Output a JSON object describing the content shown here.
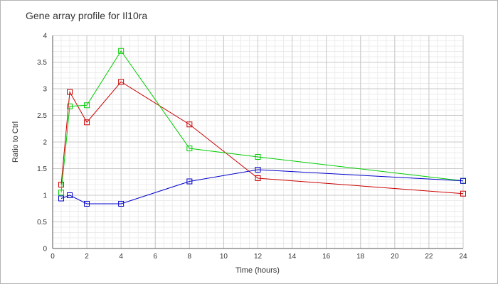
{
  "chart_data": {
    "type": "line",
    "title": "Gene array profile for Il10ra",
    "xlabel": "Time (hours)",
    "ylabel": "Ratio to Ctrl",
    "xlim": [
      0,
      24
    ],
    "ylim": [
      0,
      4
    ],
    "xticks": [
      0,
      2,
      4,
      6,
      8,
      10,
      12,
      14,
      16,
      18,
      20,
      22,
      24
    ],
    "yticks": [
      0,
      0.5,
      1,
      1.5,
      2,
      2.5,
      3,
      3.5,
      4
    ],
    "grid": true,
    "legend": "none",
    "marker": "open-square",
    "series": [
      {
        "color": "#cc0000",
        "x": [
          0.5,
          1,
          2,
          4,
          8,
          12,
          24
        ],
        "y": [
          1.2,
          2.94,
          2.37,
          3.13,
          2.33,
          1.32,
          1.03
        ]
      },
      {
        "color": "#00cc00",
        "x": [
          0.5,
          1,
          2,
          4,
          8,
          12,
          24
        ],
        "y": [
          1.05,
          2.67,
          2.69,
          3.71,
          1.88,
          1.72,
          1.27
        ]
      },
      {
        "color": "#0000cc",
        "x": [
          0.5,
          1,
          2,
          4,
          8,
          12,
          24
        ],
        "y": [
          0.94,
          1.0,
          0.84,
          0.84,
          1.26,
          1.48,
          1.27
        ]
      }
    ]
  }
}
